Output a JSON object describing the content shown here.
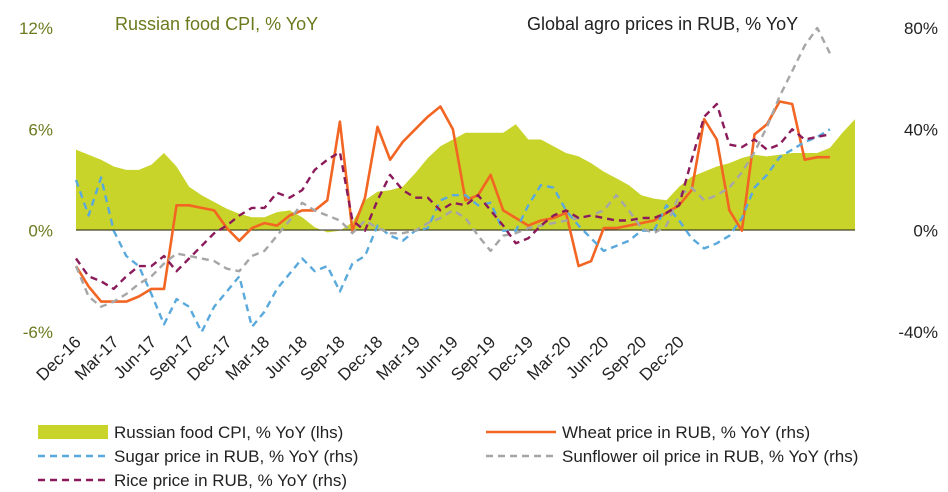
{
  "chart_data": {
    "type": "line",
    "title_left": "Russian food CPI, % YoY",
    "title_right": "Global agro prices in RUB, % YoY",
    "y_left": {
      "ticks": [
        "12%",
        "6%",
        "0%",
        "-6%"
      ],
      "values": [
        12,
        6,
        0,
        -6
      ],
      "ylim": [
        -6,
        12
      ]
    },
    "y_right": {
      "ticks": [
        "80%",
        "40%",
        "0%",
        "-40%"
      ],
      "values": [
        80,
        40,
        0,
        -40
      ],
      "ylim": [
        -40,
        80
      ]
    },
    "x_tick_labels": [
      "Dec-16",
      "Mar-17",
      "Jun-17",
      "Sep-17",
      "Dec-17",
      "Mar-18",
      "Jun-18",
      "Sep-18",
      "Dec-18",
      "Mar-19",
      "Jun-19",
      "Sep-19",
      "Dec-19",
      "Mar-20",
      "Jun-20",
      "Sep-20",
      "Dec-20"
    ],
    "series": [
      {
        "name": "Russian food CPI, % YoY (lhs)",
        "axis": "left",
        "style": "area",
        "color": "#c8d42a",
        "values": [
          4.8,
          4.5,
          4.2,
          3.8,
          3.6,
          3.6,
          3.9,
          4.6,
          3.8,
          2.6,
          2.1,
          1.7,
          1.3,
          1.0,
          0.8,
          0.8,
          1.1,
          1.2,
          0.8,
          0.2,
          -0.1,
          0,
          0.5,
          1.8,
          2.3,
          2.4,
          2.6,
          3.4,
          4.3,
          5.0,
          5.4,
          5.8,
          5.8,
          5.8,
          5.8,
          6.3,
          5.4,
          5.4,
          5.0,
          4.6,
          4.4,
          4.0,
          3.5,
          3.1,
          2.7,
          2.1,
          1.9,
          1.8,
          2.6,
          3.2,
          3.5,
          3.8,
          4.0,
          4.3,
          4.5,
          4.4,
          4.5,
          4.6,
          4.6,
          4.6,
          4.9,
          5.8,
          6.6
        ]
      },
      {
        "name": "Wheat price in RUB, % YoY (rhs)",
        "axis": "right",
        "style": "solid",
        "color": "#f26522",
        "values": [
          -14,
          -22,
          -28,
          -28,
          -28,
          -26,
          -23,
          -23,
          10,
          10,
          9,
          8,
          1,
          -4,
          1,
          3,
          2,
          6,
          8,
          8,
          12,
          43,
          0,
          13,
          41,
          28,
          35,
          40,
          45,
          49,
          40,
          12,
          14,
          22,
          8,
          5,
          2,
          4,
          5,
          7,
          -14,
          -12,
          1,
          1,
          2,
          3,
          4,
          7,
          10,
          16,
          44,
          36,
          8,
          0,
          38,
          42,
          51,
          50,
          28,
          29,
          29
        ]
      },
      {
        "name": "Sugar price in RUB, % YoY (rhs)",
        "axis": "right",
        "style": "dashed",
        "color": "#5aa9dc",
        "values": [
          20,
          6,
          21,
          0,
          -10,
          -14,
          -25,
          -37,
          -27,
          -30,
          -40,
          -30,
          -24,
          -18,
          -38,
          -32,
          -23,
          -17,
          -11,
          -16,
          -14,
          -24,
          -13,
          -10,
          2,
          -2,
          -4,
          0,
          1,
          12,
          14,
          14,
          10,
          11,
          0,
          0,
          10,
          18,
          17,
          8,
          2,
          -3,
          -8,
          -6,
          -4,
          0,
          0,
          10,
          4,
          -3,
          -7,
          -5,
          -2,
          5,
          17,
          22,
          29,
          32,
          35,
          37,
          40
        ]
      },
      {
        "name": "Sunflower oil price in RUB, % YoY (rhs)",
        "axis": "right",
        "style": "dashed",
        "color": "#a6a6a6",
        "values": [
          -14,
          -26,
          -30,
          -28,
          -25,
          -21,
          -18,
          -13,
          -9,
          -10,
          -11,
          -12,
          -15,
          -16,
          -10,
          -8,
          -2,
          4,
          11,
          8,
          6,
          4,
          -1,
          4,
          1,
          -1,
          -1,
          0,
          3,
          5,
          8,
          5,
          -2,
          -8,
          -2,
          -1,
          1,
          2,
          3,
          4,
          5,
          6,
          8,
          14,
          8,
          1,
          -1,
          2,
          14,
          17,
          12,
          14,
          17,
          23,
          31,
          41,
          53,
          63,
          73,
          80,
          70
        ]
      },
      {
        "name": "Rice price in RUB, % YoY (rhs)",
        "axis": "right",
        "style": "dashed",
        "color": "#8b1a5a",
        "values": [
          -11,
          -18,
          -20,
          -23,
          -18,
          -14,
          -14,
          -10,
          -16,
          -11,
          -6,
          -1,
          2,
          6,
          9,
          9,
          15,
          13,
          16,
          24,
          28,
          31,
          4,
          0,
          12,
          22,
          16,
          13,
          13,
          8,
          11,
          10,
          14,
          8,
          2,
          -5,
          -3,
          2,
          6,
          8,
          5,
          6,
          5,
          4,
          4,
          5,
          5,
          7,
          10,
          28,
          45,
          50,
          34,
          33,
          36,
          32,
          34,
          40,
          36,
          37,
          38
        ]
      }
    ],
    "legend": [
      {
        "label": "Russian food CPI, % YoY (lhs)",
        "marker": "area",
        "color": "#c8d42a"
      },
      {
        "label": "Wheat price in RUB, % YoY (rhs)",
        "marker": "solid",
        "color": "#f26522"
      },
      {
        "label": "Sugar price in RUB, % YoY (rhs)",
        "marker": "dashed",
        "color": "#5aa9dc"
      },
      {
        "label": "Sunflower oil price in RUB, % YoY (rhs)",
        "marker": "dashed",
        "color": "#a6a6a6"
      },
      {
        "label": "Rice price in RUB, % YoY (rhs)",
        "marker": "dashed",
        "color": "#8b1a5a"
      }
    ]
  }
}
